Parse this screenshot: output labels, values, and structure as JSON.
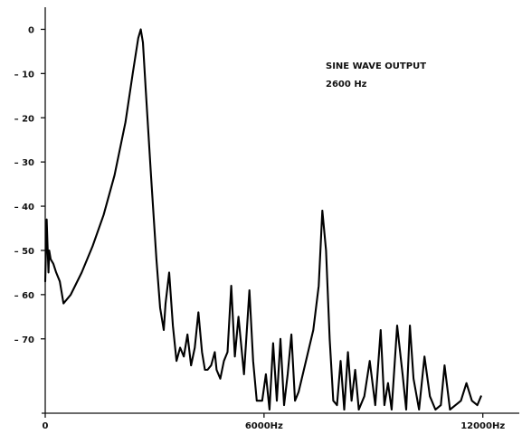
{
  "chart_data": {
    "type": "line",
    "title": "",
    "xlabel": "",
    "ylabel": "",
    "annotation": [
      "SINE WAVE OUTPUT",
      "2600 Hz"
    ],
    "xlim": [
      0,
      13000
    ],
    "ylim": [
      -86,
      5
    ],
    "x_ticks": [
      {
        "value": 0,
        "label": "0"
      },
      {
        "value": 6000,
        "label": "6000Hz"
      },
      {
        "value": 12000,
        "label": "12000Hz"
      }
    ],
    "y_ticks": [
      {
        "value": 0,
        "label": "0"
      },
      {
        "value": -10,
        "label": "– 10"
      },
      {
        "value": -20,
        "label": "– 20"
      },
      {
        "value": -30,
        "label": "– 30"
      },
      {
        "value": -40,
        "label": "– 40"
      },
      {
        "value": -50,
        "label": "– 50"
      },
      {
        "value": -60,
        "label": "– 60"
      },
      {
        "value": -70,
        "label": "– 70"
      }
    ],
    "grid": false,
    "series": [
      {
        "name": "",
        "x": [
          0,
          40,
          60,
          90,
          110,
          150,
          220,
          300,
          400,
          500,
          700,
          1000,
          1300,
          1600,
          1900,
          2200,
          2400,
          2550,
          2620,
          2680,
          2760,
          2900,
          3050,
          3150,
          3250,
          3300,
          3400,
          3500,
          3600,
          3700,
          3800,
          3900,
          4000,
          4100,
          4200,
          4300,
          4380,
          4450,
          4550,
          4650,
          4700,
          4800,
          4900,
          5000,
          5100,
          5200,
          5300,
          5450,
          5600,
          5700,
          5800,
          5950,
          6050,
          6150,
          6250,
          6350,
          6450,
          6550,
          6650,
          6750,
          6850,
          6950,
          7150,
          7350,
          7500,
          7600,
          7700,
          7800,
          7900,
          8000,
          8100,
          8200,
          8300,
          8400,
          8500,
          8600,
          8750,
          8900,
          9050,
          9200,
          9300,
          9400,
          9500,
          9650,
          9800,
          9900,
          10000,
          10100,
          10250,
          10400,
          10550,
          10700,
          10850,
          10950,
          11100,
          11250,
          11400,
          11550,
          11700,
          11850,
          11950
        ],
        "y": [
          -57,
          -43,
          -48,
          -55,
          -50,
          -52,
          -53,
          -55,
          -57,
          -62,
          -60,
          -55,
          -49,
          -42,
          -33,
          -21,
          -10,
          -2,
          0,
          -3,
          -14,
          -33,
          -52,
          -63,
          -68,
          -62,
          -55,
          -67,
          -75,
          -72,
          -74,
          -69,
          -76,
          -72,
          -64,
          -73,
          -77,
          -77,
          -76,
          -73,
          -77,
          -79,
          -75,
          -73,
          -58,
          -74,
          -65,
          -78,
          -59,
          -75,
          -84,
          -84,
          -78,
          -86,
          -71,
          -84,
          -70,
          -85,
          -78,
          -69,
          -84,
          -82,
          -75,
          -68,
          -58,
          -41,
          -50,
          -70,
          -84,
          -85,
          -75,
          -86,
          -73,
          -84,
          -77,
          -86,
          -83,
          -75,
          -85,
          -68,
          -85,
          -80,
          -86,
          -67,
          -78,
          -86,
          -67,
          -79,
          -86,
          -74,
          -83,
          -86,
          -85,
          -76,
          -86,
          -85,
          -84,
          -80,
          -84,
          -85,
          -83
        ]
      }
    ]
  }
}
